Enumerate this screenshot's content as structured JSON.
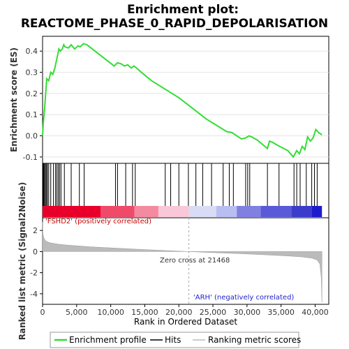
{
  "title": "Enrichment plot:",
  "subtitle": "REACTOME_PHASE_0_RAPID_DEPOLARISATION",
  "colors": {
    "profile": "#33dd33",
    "hits": "#000000",
    "metric_fill": "#bbbbbb",
    "positive_label": "#cc0000",
    "negative_label": "#2222cc",
    "zero_line": "#aaaaaa"
  },
  "chart_data": {
    "type": "line",
    "es": {
      "ylabel": "Enrichment score (ES)",
      "ylim": [
        -0.13,
        0.47
      ],
      "yticks": [
        -0.1,
        0.0,
        0.1,
        0.2,
        0.3,
        0.4
      ],
      "ytick_labels": [
        "-0.1",
        "0.0",
        "0.1",
        "0.2",
        "0.3",
        "0.4"
      ],
      "grid": true,
      "x": [
        0,
        100,
        300,
        500,
        600,
        900,
        1200,
        1500,
        1800,
        2000,
        2200,
        2400,
        2600,
        2900,
        3100,
        3300,
        3800,
        4200,
        4700,
        5200,
        5500,
        6000,
        6500,
        10500,
        11000,
        11500,
        12000,
        12500,
        13000,
        13400,
        13800,
        14500,
        16000,
        18000,
        20000,
        22000,
        24000,
        26000,
        27000,
        27800,
        28500,
        29200,
        29800,
        30300,
        30700,
        31500,
        33000,
        33300,
        33700,
        34500,
        36000,
        36800,
        37300,
        37700,
        38100,
        38500,
        38900,
        39300,
        39700,
        40100,
        40500,
        41000
      ],
      "y": [
        0.0,
        0.06,
        0.13,
        0.22,
        0.27,
        0.26,
        0.3,
        0.29,
        0.32,
        0.35,
        0.38,
        0.41,
        0.4,
        0.41,
        0.43,
        0.42,
        0.415,
        0.43,
        0.41,
        0.425,
        0.42,
        0.435,
        0.43,
        0.33,
        0.345,
        0.34,
        0.33,
        0.335,
        0.32,
        0.33,
        0.32,
        0.3,
        0.26,
        0.22,
        0.18,
        0.13,
        0.08,
        0.04,
        0.02,
        0.015,
        0.0,
        -0.015,
        -0.01,
        0.0,
        -0.005,
        -0.02,
        -0.06,
        -0.025,
        -0.03,
        -0.045,
        -0.07,
        -0.1,
        -0.07,
        -0.085,
        -0.05,
        -0.065,
        -0.005,
        -0.025,
        -0.01,
        0.03,
        0.015,
        0.005
      ]
    },
    "hits": [
      100,
      200,
      300,
      450,
      600,
      700,
      900,
      1200,
      1600,
      1900,
      2100,
      2300,
      2500,
      2700,
      3200,
      4200,
      5400,
      6100,
      10700,
      11000,
      12200,
      13200,
      13600,
      18000,
      18800,
      20000,
      21400,
      22500,
      23500,
      24800,
      26500,
      27400,
      28000,
      29800,
      30100,
      30400,
      33000,
      34700,
      36900,
      37300,
      37800,
      38700,
      39500,
      39900,
      40300
    ],
    "heatmap": {
      "segments": [
        {
          "x0": 0,
          "x1": 8500,
          "color": "#e8002a"
        },
        {
          "x0": 8500,
          "x1": 13500,
          "color": "#f04a6a"
        },
        {
          "x0": 13500,
          "x1": 17000,
          "color": "#f48aa0"
        },
        {
          "x0": 17000,
          "x1": 21468,
          "color": "#f8c8d8"
        },
        {
          "x0": 21468,
          "x1": 25500,
          "color": "#d8dcf4"
        },
        {
          "x0": 25500,
          "x1": 28500,
          "color": "#b8bef0"
        },
        {
          "x0": 28500,
          "x1": 32000,
          "color": "#8080e0"
        },
        {
          "x0": 32000,
          "x1": 36500,
          "color": "#5a5ad8"
        },
        {
          "x0": 36500,
          "x1": 39500,
          "color": "#3c3ccc"
        },
        {
          "x0": 39500,
          "x1": 41000,
          "color": "#1c1ccf"
        }
      ]
    },
    "metric": {
      "ylabel": "Ranked list metric (Signal2Noise)",
      "ylim": [
        -5.0,
        3.2
      ],
      "yticks": [
        -4,
        -2,
        0,
        2
      ],
      "ytick_labels": [
        "-4",
        "-2",
        "0",
        "2"
      ],
      "x": [
        0,
        50,
        150,
        300,
        500,
        800,
        1200,
        1800,
        2500,
        3500,
        5000,
        7000,
        10000,
        14000,
        18000,
        21468,
        25000,
        29000,
        33000,
        36000,
        38000,
        39500,
        40300,
        40700,
        40900,
        41000
      ],
      "y": [
        2.8,
        1.7,
        1.35,
        1.15,
        1.0,
        0.9,
        0.82,
        0.75,
        0.68,
        0.62,
        0.55,
        0.45,
        0.35,
        0.22,
        0.1,
        0.0,
        -0.1,
        -0.2,
        -0.32,
        -0.42,
        -0.5,
        -0.62,
        -0.8,
        -1.2,
        -2.5,
        -4.8
      ]
    },
    "xlabel": "Rank in Ordered Dataset",
    "xlim": [
      0,
      42000
    ],
    "xticks": [
      0,
      5000,
      10000,
      15000,
      20000,
      25000,
      30000,
      35000,
      40000
    ],
    "xtick_labels": [
      "0",
      "5,000",
      "10,000",
      "15,000",
      "20,000",
      "25,000",
      "30,000",
      "35,000",
      "40,000"
    ],
    "zero_cross": 21468,
    "zero_cross_label": "Zero cross at 21468",
    "positive_label": "'FSHD2' (positively correlated)",
    "negative_label": "'ARH' (negatively correlated)",
    "legend": [
      "Enrichment profile",
      "Hits",
      "Ranking metric scores"
    ],
    "legend_placement": "bottom"
  }
}
